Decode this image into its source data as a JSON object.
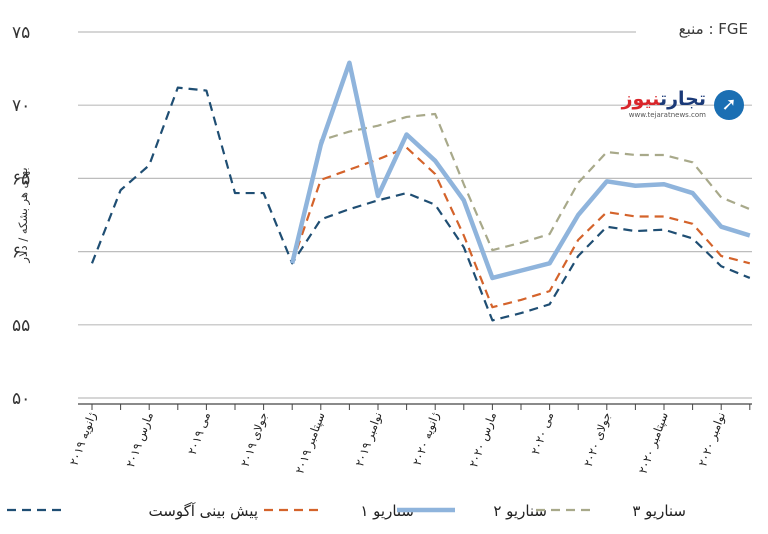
{
  "source_label": "منبع : FGE",
  "logo": {
    "main": "تجارت",
    "accent": "نیوز",
    "sub": "www.tejaratnews.com",
    "icon": "arrow-circle-icon"
  },
  "colors": {
    "forecast_aug": "#1f4e73",
    "scenario1": "#d4632b",
    "scenario2": "#8fb4dc",
    "scenario3": "#a8a98a",
    "grid": "#bdbdbd"
  },
  "chart_data": {
    "type": "line",
    "ylabel": "بهای هر بشکه / دلار",
    "ylim": [
      50,
      75
    ],
    "yticks": [
      50,
      55,
      60,
      65,
      70,
      75
    ],
    "ytick_labels": [
      "۵۰",
      "۵۵",
      "۶۰",
      "۶۵",
      "۷۰",
      "۷۵"
    ],
    "x_labels": [
      "ژانویه ۲۰۱۹",
      "مارس ۲۰۱۹",
      "می ۲۰۱۹",
      "جولای ۲۰۱۹",
      "سپتامبر ۲۰۱۹",
      "نوامبر ۲۰۱۹",
      "ژانویه ۲۰۲۰",
      "مارس ۲۰۲۰",
      "می ۲۰۲۰",
      "جولای ۲۰۲۰",
      "سپتامبر ۲۰۲۰",
      "نوامبر ۲۰۲۰"
    ],
    "x_months": [
      "2019-01",
      "2019-02",
      "2019-03",
      "2019-04",
      "2019-05",
      "2019-06",
      "2019-07",
      "2019-08",
      "2019-09",
      "2019-10",
      "2019-11",
      "2019-12",
      "2020-01",
      "2020-02",
      "2020-03",
      "2020-04",
      "2020-05",
      "2020-06",
      "2020-07",
      "2020-08",
      "2020-09",
      "2020-10",
      "2020-11",
      "2020-12"
    ],
    "series": [
      {
        "name": "پیش بینی آگوست",
        "style": "dashed",
        "x": [
          "2019-01",
          "2019-02",
          "2019-03",
          "2019-04",
          "2019-05",
          "2019-06",
          "2019-07",
          "2019-08",
          "2019-09",
          "2019-10",
          "2019-11",
          "2019-12",
          "2020-01",
          "2020-02",
          "2020-03",
          "2020-04",
          "2020-05",
          "2020-06",
          "2020-07",
          "2020-08",
          "2020-09",
          "2020-10",
          "2020-11",
          "2020-12"
        ],
        "values": [
          59.2,
          64.2,
          65.9,
          71.2,
          71.0,
          64.0,
          64.0,
          59.2,
          62.2,
          62.9,
          63.5,
          64.0,
          63.2,
          60.3,
          55.3,
          55.8,
          56.4,
          59.7,
          61.7,
          61.4,
          61.5,
          60.9,
          59.0,
          58.2
        ]
      },
      {
        "name": "سناریو ۱",
        "style": "dashed",
        "x": [
          "2019-08",
          "2019-09",
          "2019-10",
          "2019-11",
          "2019-12",
          "2020-01",
          "2020-02",
          "2020-03",
          "2020-04",
          "2020-05",
          "2020-06",
          "2020-07",
          "2020-08",
          "2020-09",
          "2020-10",
          "2020-11",
          "2020-12"
        ],
        "values": [
          59.2,
          64.9,
          65.6,
          66.3,
          67.1,
          65.3,
          61.1,
          56.2,
          56.7,
          57.3,
          60.8,
          62.7,
          62.4,
          62.4,
          61.9,
          59.7,
          59.2
        ]
      },
      {
        "name": "سناریو ۲",
        "style": "solid",
        "x": [
          "2019-08",
          "2019-09",
          "2019-10",
          "2019-11",
          "2019-12",
          "2020-01",
          "2020-02",
          "2020-03",
          "2020-04",
          "2020-05",
          "2020-06",
          "2020-07",
          "2020-08",
          "2020-09",
          "2020-10",
          "2020-11",
          "2020-12"
        ],
        "values": [
          59.2,
          67.3,
          72.9,
          63.8,
          68.0,
          66.2,
          63.5,
          58.2,
          58.7,
          59.2,
          62.5,
          64.8,
          64.5,
          64.6,
          64.0,
          61.7,
          61.1
        ]
      },
      {
        "name": "سناریو ۳",
        "style": "dashed",
        "x": [
          "2019-08",
          "2019-09",
          "2019-10",
          "2019-11",
          "2019-12",
          "2020-01",
          "2020-02",
          "2020-03",
          "2020-04",
          "2020-05",
          "2020-06",
          "2020-07",
          "2020-08",
          "2020-09",
          "2020-10",
          "2020-11",
          "2020-12"
        ],
        "values": [
          59.2,
          67.6,
          68.2,
          68.6,
          69.2,
          69.4,
          64.6,
          60.1,
          60.6,
          61.2,
          64.7,
          66.8,
          66.6,
          66.6,
          66.1,
          63.7,
          62.9
        ]
      }
    ],
    "grid": true,
    "legend_position": "bottom"
  }
}
